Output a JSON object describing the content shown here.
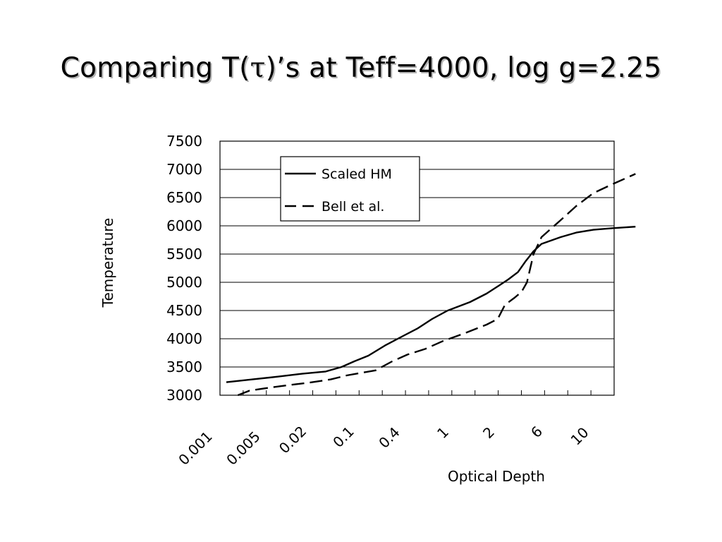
{
  "title": {
    "prefix": "Comparing T(",
    "tau": "τ",
    "suffix": ")’s at Teff=4000, log g=2.25"
  },
  "chart_data": {
    "type": "line",
    "xlabel": "Optical Depth",
    "ylabel": "Temperature",
    "ylim": [
      3000,
      7500
    ],
    "y_ticks": [
      3000,
      3500,
      4000,
      4500,
      5000,
      5500,
      6000,
      6500,
      7000,
      7500
    ],
    "x_tick_labels": [
      "0.001",
      "0.005",
      "0.02",
      "0.1",
      "0.4",
      "1",
      "2",
      "6",
      "10"
    ],
    "grid": "horizontal",
    "legend_position": "top-left",
    "series": [
      {
        "name": "Scaled HM",
        "style": "solid",
        "points": [
          [
            0.0008,
            3230
          ],
          [
            0.002,
            3280
          ],
          [
            0.005,
            3330
          ],
          [
            0.01,
            3380
          ],
          [
            0.02,
            3420
          ],
          [
            0.04,
            3500
          ],
          [
            0.07,
            3600
          ],
          [
            0.12,
            3700
          ],
          [
            0.2,
            3880
          ],
          [
            0.35,
            4050
          ],
          [
            0.5,
            4180
          ],
          [
            0.7,
            4350
          ],
          [
            1.0,
            4500
          ],
          [
            1.4,
            4650
          ],
          [
            1.8,
            4800
          ],
          [
            2.3,
            4950
          ],
          [
            2.8,
            5050
          ],
          [
            3.5,
            5180
          ],
          [
            4.2,
            5380
          ],
          [
            5.0,
            5550
          ],
          [
            6.0,
            5680
          ],
          [
            7.5,
            5800
          ],
          [
            9.0,
            5880
          ],
          [
            11,
            5930
          ],
          [
            14,
            5960
          ],
          [
            18,
            5985
          ]
        ]
      },
      {
        "name": "Bell et al.",
        "style": "dashed",
        "points": [
          [
            0.0012,
            3000
          ],
          [
            0.0018,
            3080
          ],
          [
            0.003,
            3120
          ],
          [
            0.006,
            3170
          ],
          [
            0.012,
            3220
          ],
          [
            0.025,
            3280
          ],
          [
            0.05,
            3350
          ],
          [
            0.1,
            3400
          ],
          [
            0.15,
            3440
          ],
          [
            0.25,
            3600
          ],
          [
            0.4,
            3720
          ],
          [
            0.6,
            3820
          ],
          [
            0.9,
            3960
          ],
          [
            1.3,
            4100
          ],
          [
            1.8,
            4250
          ],
          [
            2.2,
            4350
          ],
          [
            2.6,
            4600
          ],
          [
            3.2,
            4720
          ],
          [
            3.8,
            4830
          ],
          [
            4.3,
            5000
          ],
          [
            5.0,
            5500
          ],
          [
            6.0,
            5800
          ],
          [
            7.5,
            6100
          ],
          [
            9.0,
            6350
          ],
          [
            11,
            6580
          ],
          [
            14,
            6750
          ],
          [
            18,
            6920
          ]
        ]
      }
    ]
  }
}
